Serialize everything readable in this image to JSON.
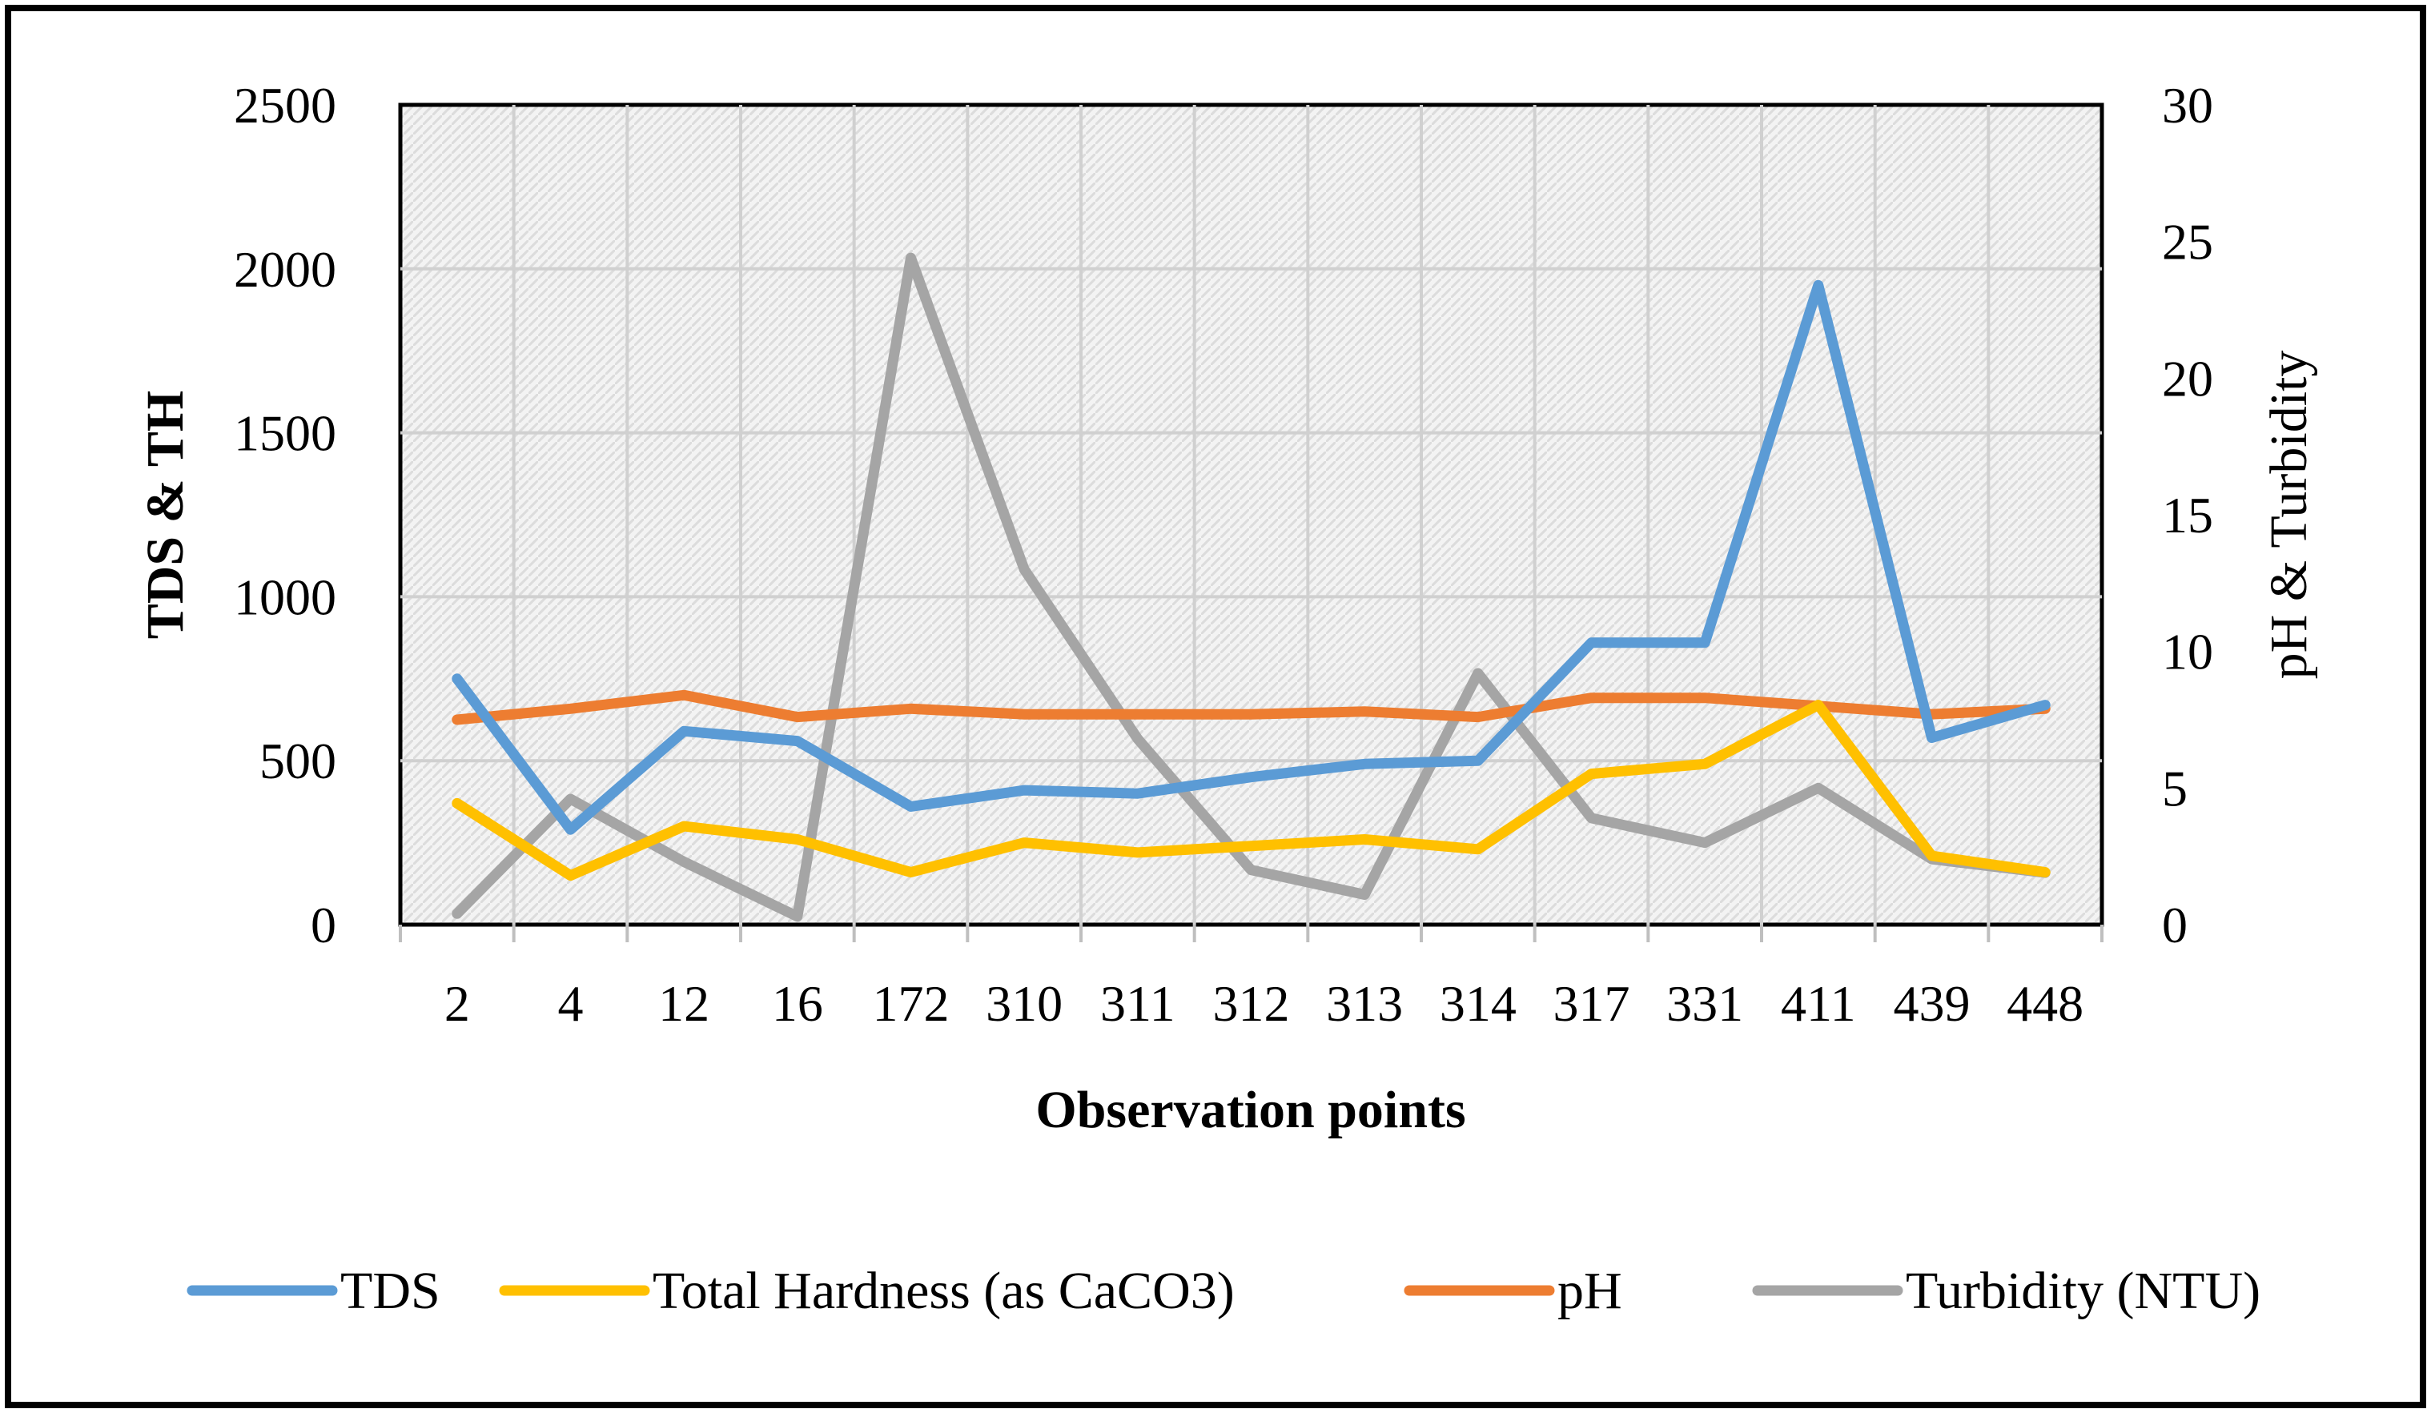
{
  "chart_data": {
    "type": "line",
    "title": "",
    "xlabel": "Observation points",
    "ylabel": "TDS & TH",
    "y2label": "pH & Turbidity",
    "categories": [
      "2",
      "4",
      "12",
      "16",
      "172",
      "310",
      "311",
      "312",
      "313",
      "314",
      "317",
      "331",
      "411",
      "439",
      "448"
    ],
    "ylim": [
      0,
      2500
    ],
    "y2lim": [
      0,
      30
    ],
    "yticks": [
      "0",
      "500",
      "1000",
      "1500",
      "2000",
      "2500"
    ],
    "y2ticks": [
      "0",
      "5",
      "10",
      "15",
      "20",
      "25",
      "30"
    ],
    "grid": true,
    "legend_position": "bottom",
    "series": [
      {
        "name": "TDS",
        "axis": "left",
        "color": "#5B9BD5",
        "values": [
          750,
          290,
          590,
          560,
          360,
          410,
          400,
          450,
          490,
          500,
          860,
          860,
          1950,
          570,
          670
        ]
      },
      {
        "name": "Total Hardness (as CaCO3)",
        "axis": "left",
        "color": "#FFC000",
        "values": [
          370,
          150,
          300,
          260,
          160,
          250,
          220,
          240,
          260,
          230,
          460,
          490,
          670,
          210,
          160
        ]
      },
      {
        "name": "pH",
        "axis": "right",
        "color": "#ED7D31",
        "values": [
          7.5,
          7.9,
          8.4,
          7.6,
          7.9,
          7.7,
          7.7,
          7.7,
          7.8,
          7.6,
          8.3,
          8.3,
          8.0,
          7.7,
          7.9
        ]
      },
      {
        "name": "Turbidity (NTU)",
        "axis": "right",
        "color": "#A5A5A5",
        "values": [
          0.4,
          4.6,
          2.3,
          0.3,
          24.4,
          13.0,
          6.8,
          2.0,
          1.1,
          9.2,
          3.9,
          3.0,
          5.0,
          2.4,
          1.9
        ]
      }
    ]
  }
}
